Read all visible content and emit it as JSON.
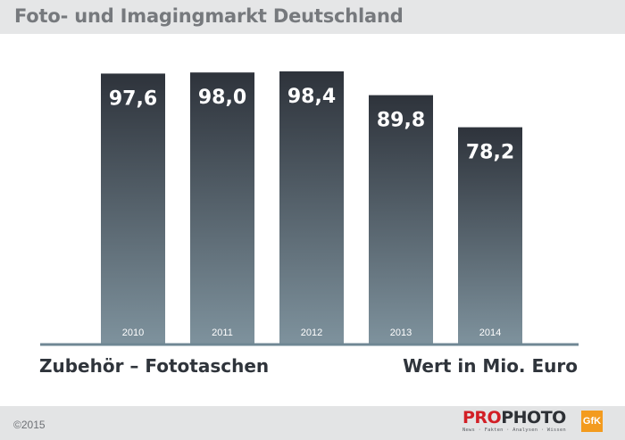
{
  "header": {
    "title": "Foto- und Imagingmarkt Deutschland"
  },
  "chart_data": {
    "type": "bar",
    "categories": [
      "2010",
      "2011",
      "2012",
      "2013",
      "2014"
    ],
    "values": [
      97.6,
      98.0,
      98.4,
      89.8,
      78.2
    ],
    "value_labels": [
      "97,6",
      "98,0",
      "98,4",
      "89,8",
      "78,2"
    ],
    "title": "Zubehör – Fototaschen",
    "ylabel": "Wert in Mio. Euro",
    "xlabel": "",
    "grid": false,
    "legend": "none",
    "colors": {
      "bar_top": "#2e333b",
      "bar_bottom": "#7e929d",
      "axis": "#6f8794",
      "value_label": "#ffffff",
      "category_label": "#ffffff"
    }
  },
  "footer": {
    "copyright": "©2015",
    "brand_pro": "PRO",
    "brand_photo": "PHOTO",
    "brand_tagline": "News · Fakten · Analysen · Wissen",
    "partner_logo": "GfK"
  }
}
